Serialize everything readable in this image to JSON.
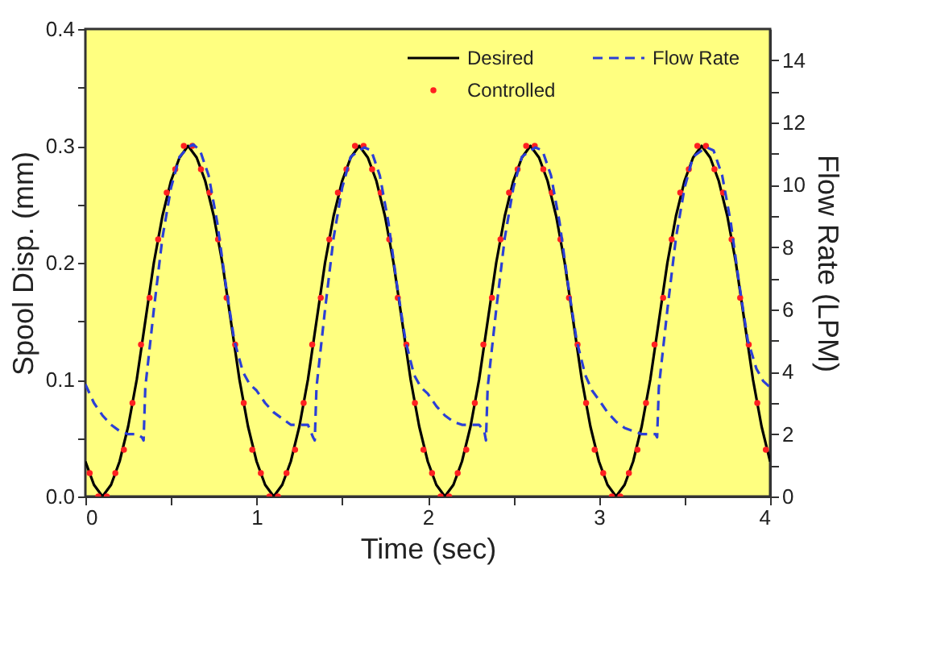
{
  "chart_data": {
    "type": "line",
    "xlabel": "Time (sec)",
    "ylabel": "Spool Disp. (mm)",
    "y2label": "Flow Rate (LPM)",
    "xlim": [
      0,
      4
    ],
    "xticks": [
      0,
      {
        "value": 0.5,
        "label": null
      },
      1,
      {
        "value": 1.5,
        "label": null
      },
      2,
      {
        "value": 2.5,
        "label": null
      },
      3,
      {
        "value": 3.5,
        "label": null
      },
      4
    ],
    "ylim": [
      0,
      0.4
    ],
    "yticks": [
      {
        "value": 0,
        "label": "0.0"
      },
      {
        "value": 0.05,
        "label": null
      },
      0.1,
      {
        "value": 0.15,
        "label": null
      },
      0.2,
      {
        "value": 0.25,
        "label": null
      },
      0.3,
      {
        "value": 0.35,
        "label": null
      },
      0.4
    ],
    "y2lim": [
      0,
      15
    ],
    "y2ticks": [
      0,
      {
        "value": 1,
        "label": null
      },
      2,
      {
        "value": 3,
        "label": null
      },
      4,
      {
        "value": 5,
        "label": null
      },
      6,
      {
        "value": 7,
        "label": null
      },
      8,
      {
        "value": 9,
        "label": null
      },
      10,
      {
        "value": 11,
        "label": null
      },
      12,
      {
        "value": 13,
        "label": null
      },
      14
    ],
    "legend": "top right",
    "series": [
      {
        "name": "Desired",
        "color": "#000000",
        "line_style": "solid",
        "marker": "none",
        "x": [
          0,
          0.05,
          0.1,
          0.15,
          0.2,
          0.25,
          0.3,
          0.35,
          0.4,
          0.45,
          0.5,
          0.55,
          0.6,
          0.65,
          0.7,
          0.75,
          0.8,
          0.85,
          0.9,
          0.95,
          1,
          1.05,
          1.1,
          1.15,
          1.2,
          1.25,
          1.3,
          1.35,
          1.4,
          1.45,
          1.5,
          1.55,
          1.6,
          1.65,
          1.7,
          1.75,
          1.8,
          1.85,
          1.9,
          1.95,
          2,
          2.05,
          2.1,
          2.15,
          2.2,
          2.25,
          2.3,
          2.35,
          2.4,
          2.45,
          2.5,
          2.55,
          2.6,
          2.65,
          2.7,
          2.75,
          2.8,
          2.85,
          2.9,
          2.95,
          3,
          3.05,
          3.1,
          3.15,
          3.2,
          3.25,
          3.3,
          3.35,
          3.4,
          3.45,
          3.5,
          3.55,
          3.6,
          3.65,
          3.7,
          3.75,
          3.8,
          3.85,
          3.9,
          3.95,
          4
        ],
        "values": [
          0.03,
          0.01,
          0,
          0.01,
          0.03,
          0.06,
          0.1,
          0.15,
          0.2,
          0.24,
          0.27,
          0.29,
          0.3,
          0.29,
          0.27,
          0.24,
          0.2,
          0.15,
          0.1,
          0.06,
          0.03,
          0.01,
          0,
          0.01,
          0.03,
          0.06,
          0.1,
          0.15,
          0.2,
          0.24,
          0.27,
          0.29,
          0.3,
          0.29,
          0.27,
          0.24,
          0.2,
          0.15,
          0.1,
          0.06,
          0.03,
          0.01,
          0,
          0.01,
          0.03,
          0.06,
          0.1,
          0.15,
          0.2,
          0.24,
          0.27,
          0.29,
          0.3,
          0.29,
          0.27,
          0.24,
          0.2,
          0.15,
          0.1,
          0.06,
          0.03,
          0.01,
          0,
          0.01,
          0.03,
          0.06,
          0.1,
          0.15,
          0.2,
          0.24,
          0.27,
          0.29,
          0.3,
          0.29,
          0.27,
          0.24,
          0.2,
          0.15,
          0.1,
          0.06,
          0.03
        ]
      },
      {
        "name": "Controlled",
        "color": "#ff2020",
        "type": "scatter",
        "marker": "circle",
        "x": [
          0.025,
          0.075,
          0.125,
          0.175,
          0.225,
          0.275,
          0.325,
          0.375,
          0.425,
          0.475,
          0.525,
          0.575,
          0.625,
          0.675,
          0.725,
          0.775,
          0.825,
          0.875,
          0.925,
          0.975,
          1.025,
          1.075,
          1.125,
          1.175,
          1.225,
          1.275,
          1.325,
          1.375,
          1.425,
          1.475,
          1.525,
          1.575,
          1.625,
          1.675,
          1.725,
          1.775,
          1.825,
          1.875,
          1.925,
          1.975,
          2.025,
          2.075,
          2.125,
          2.175,
          2.225,
          2.275,
          2.325,
          2.375,
          2.425,
          2.475,
          2.525,
          2.575,
          2.625,
          2.675,
          2.725,
          2.775,
          2.825,
          2.875,
          2.925,
          2.975,
          3.025,
          3.075,
          3.125,
          3.175,
          3.225,
          3.275,
          3.325,
          3.375,
          3.425,
          3.475,
          3.525,
          3.575,
          3.625,
          3.675,
          3.725,
          3.775,
          3.825,
          3.875,
          3.925,
          3.975
        ],
        "values": [
          0.02,
          0,
          0,
          0.02,
          0.04,
          0.08,
          0.13,
          0.17,
          0.22,
          0.26,
          0.28,
          0.3,
          0.3,
          0.28,
          0.26,
          0.22,
          0.17,
          0.13,
          0.08,
          0.04,
          0.02,
          0,
          0,
          0.02,
          0.04,
          0.08,
          0.13,
          0.17,
          0.22,
          0.26,
          0.28,
          0.3,
          0.3,
          0.28,
          0.26,
          0.22,
          0.17,
          0.13,
          0.08,
          0.04,
          0.02,
          0,
          0,
          0.02,
          0.04,
          0.08,
          0.13,
          0.17,
          0.22,
          0.26,
          0.28,
          0.3,
          0.3,
          0.28,
          0.26,
          0.22,
          0.17,
          0.13,
          0.08,
          0.04,
          0.02,
          0,
          0,
          0.02,
          0.04,
          0.08,
          0.13,
          0.17,
          0.22,
          0.26,
          0.28,
          0.3,
          0.3,
          0.28,
          0.26,
          0.22,
          0.17,
          0.13,
          0.08,
          0.04
        ]
      },
      {
        "name": "Flow Rate",
        "color": "#2b3fd6",
        "line_style": "dashed",
        "marker": "none",
        "axis": "y2",
        "x": [
          0,
          0.05,
          0.1,
          0.15,
          0.2,
          0.25,
          0.3,
          0.33,
          0.34,
          0.35,
          0.4,
          0.45,
          0.5,
          0.55,
          0.6,
          0.63,
          0.67,
          0.72,
          0.77,
          0.82,
          0.87,
          0.92,
          0.96,
          1,
          1.05,
          1.1,
          1.15,
          1.2,
          1.25,
          1.3,
          1.33,
          1.34,
          1.35,
          1.4,
          1.45,
          1.5,
          1.55,
          1.6,
          1.63,
          1.67,
          1.72,
          1.77,
          1.82,
          1.87,
          1.92,
          1.96,
          2,
          2.05,
          2.1,
          2.15,
          2.2,
          2.25,
          2.3,
          2.33,
          2.34,
          2.35,
          2.4,
          2.45,
          2.5,
          2.55,
          2.6,
          2.63,
          2.67,
          2.72,
          2.77,
          2.82,
          2.87,
          2.92,
          2.96,
          3,
          3.05,
          3.1,
          3.15,
          3.2,
          3.25,
          3.3,
          3.33,
          3.34,
          3.35,
          3.4,
          3.45,
          3.5,
          3.55,
          3.6,
          3.63,
          3.67,
          3.72,
          3.77,
          3.82,
          3.87,
          3.92,
          3.96,
          4
        ],
        "values": [
          3.6,
          3,
          2.6,
          2.3,
          2.1,
          2,
          2,
          1.9,
          1.8,
          3.5,
          6,
          8.3,
          9.9,
          10.9,
          11.2,
          11.3,
          11.1,
          10.3,
          8.8,
          6.8,
          5,
          4,
          3.6,
          3.4,
          3,
          2.7,
          2.5,
          2.3,
          2.3,
          2.3,
          1.9,
          1.8,
          3.5,
          6,
          8.3,
          9.9,
          10.9,
          11.1,
          11.2,
          11.1,
          10.3,
          8.8,
          6.8,
          5,
          3.9,
          3.5,
          3.3,
          2.9,
          2.6,
          2.4,
          2.3,
          2.3,
          2.3,
          2.1,
          1.8,
          3.5,
          6,
          8.3,
          9.9,
          10.9,
          11.1,
          11.2,
          11.1,
          10.3,
          8.8,
          6.8,
          5,
          3.9,
          3.4,
          3.1,
          2.7,
          2.4,
          2.2,
          2.1,
          2,
          2,
          2,
          1.9,
          3.5,
          6,
          8.3,
          9.9,
          10.9,
          11.1,
          11.2,
          11.1,
          10.3,
          8.8,
          6.8,
          5,
          4.1,
          3.7,
          3.5
        ]
      }
    ]
  }
}
